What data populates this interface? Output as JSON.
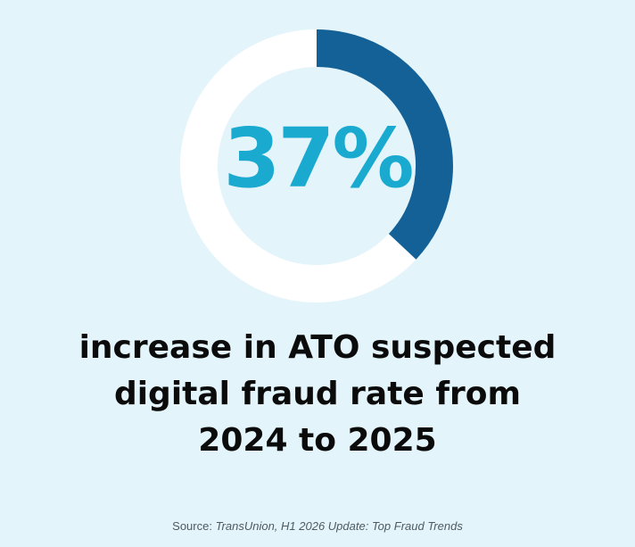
{
  "colors": {
    "background": "#e3f4fb",
    "track": "#ffffff",
    "accent": "#136196",
    "value_text": "#1aaad0"
  },
  "stat": {
    "value_label": "37%",
    "headline_lines": [
      "increase in ATO suspected",
      "digital fraud rate from",
      "2024 to 2025"
    ]
  },
  "source": {
    "prefix": "Source: ",
    "title": "TransUnion, H1 2026 Update: Top Fraud Trends"
  },
  "chart_data": {
    "type": "pie",
    "style": "donut",
    "values": [
      37,
      63
    ],
    "value_unit": "%",
    "center_label": "37%"
  }
}
